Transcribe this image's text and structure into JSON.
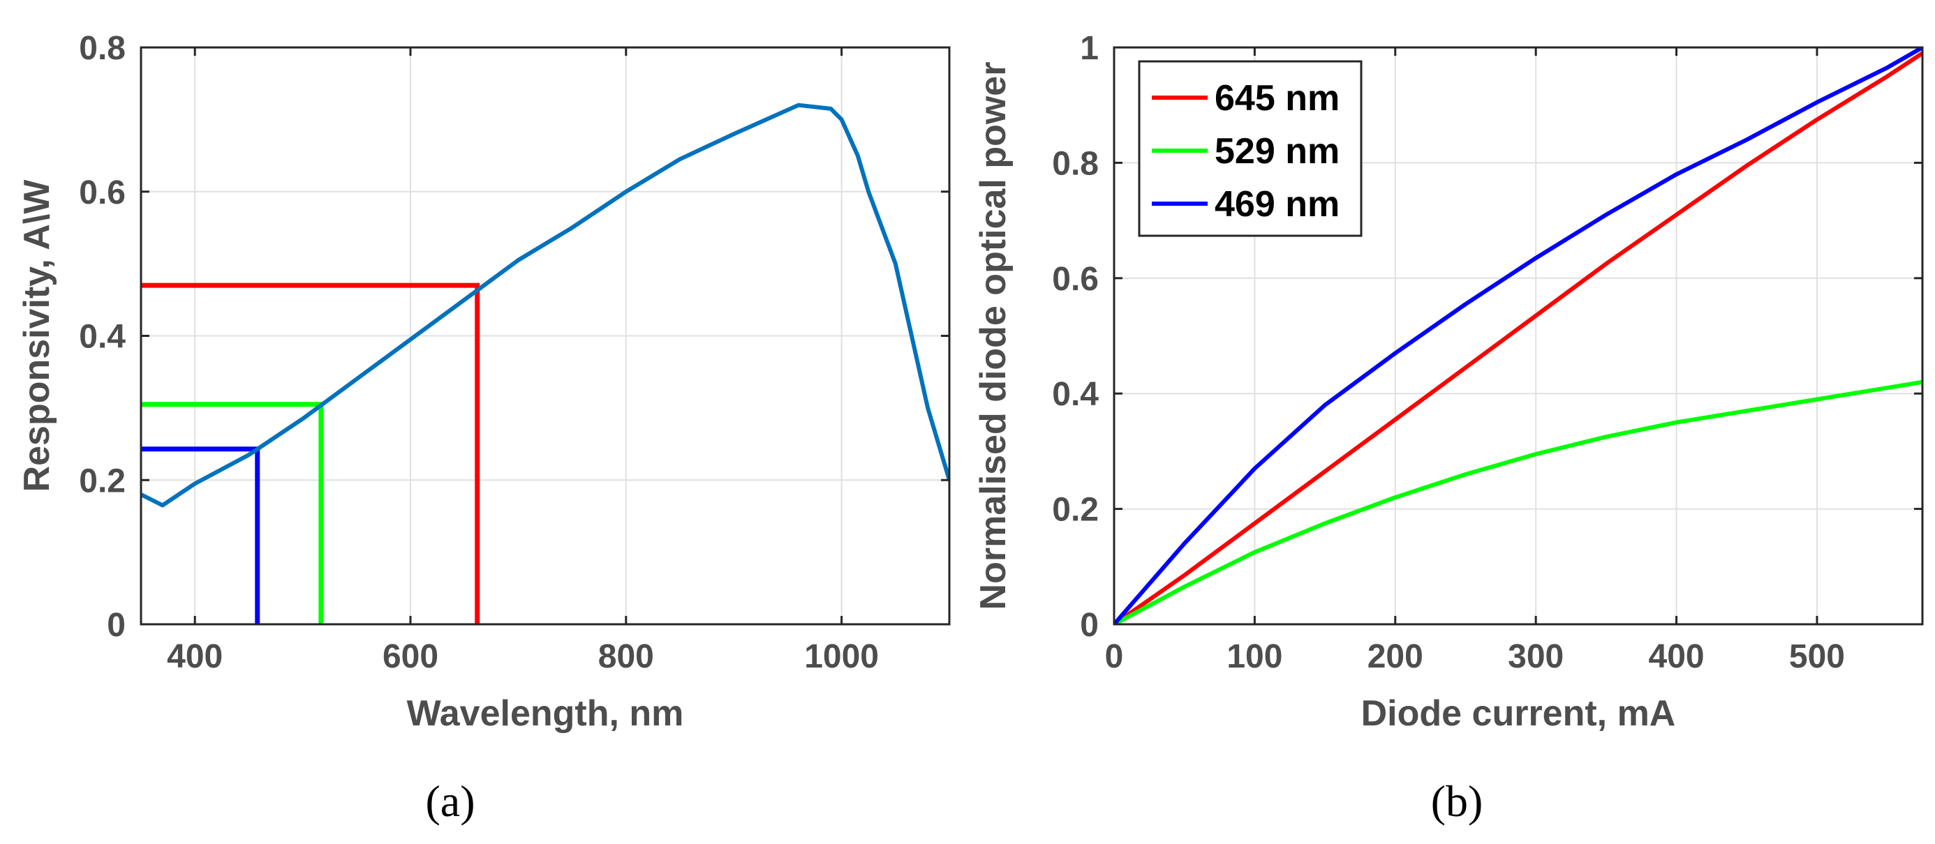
{
  "chart_data": [
    {
      "type": "line",
      "panel_label": "(a)",
      "title": "",
      "xlabel": "Wavelength, nm",
      "ylabel": "Responsivity, A\\W",
      "xlim": [
        350,
        1100
      ],
      "ylim": [
        0,
        0.8
      ],
      "xticks": [
        400,
        600,
        800,
        1000
      ],
      "yticks": [
        0,
        0.2,
        0.4,
        0.6,
        0.8
      ],
      "xtick_labels": [
        "400",
        "600",
        "800",
        "1000"
      ],
      "ytick_labels": [
        "0",
        "0.2",
        "0.4",
        "0.6",
        "0.8"
      ],
      "grid": true,
      "series": [
        {
          "name": "Responsivity",
          "color": "#0072BD",
          "x": [
            350,
            370,
            400,
            450,
            500,
            550,
            600,
            650,
            700,
            750,
            800,
            850,
            900,
            960,
            990,
            1000,
            1015,
            1025,
            1050,
            1080,
            1100
          ],
          "y": [
            0.18,
            0.165,
            0.195,
            0.235,
            0.285,
            0.34,
            0.395,
            0.45,
            0.505,
            0.55,
            0.6,
            0.645,
            0.68,
            0.72,
            0.715,
            0.7,
            0.65,
            0.6,
            0.5,
            0.3,
            0.2
          ]
        }
      ],
      "markers": [
        {
          "name": "645 nm",
          "color": "#FF0000",
          "x": 662,
          "y": 0.47
        },
        {
          "name": "529 nm",
          "color": "#00FF00",
          "x": 517,
          "y": 0.305
        },
        {
          "name": "469 nm",
          "color": "#0000FF",
          "x": 458,
          "y": 0.243
        }
      ]
    },
    {
      "type": "line",
      "panel_label": "(b)",
      "title": "",
      "xlabel": "Diode current, mA",
      "ylabel": "Normalised diode optical power",
      "xlim": [
        0,
        575
      ],
      "ylim": [
        0,
        1
      ],
      "xticks": [
        0,
        100,
        200,
        300,
        400,
        500
      ],
      "yticks": [
        0,
        0.2,
        0.4,
        0.6,
        0.8,
        1
      ],
      "xtick_labels": [
        "0",
        "100",
        "200",
        "300",
        "400",
        "500"
      ],
      "ytick_labels": [
        "0",
        "0.2",
        "0.4",
        "0.6",
        "0.8",
        "1"
      ],
      "grid": true,
      "legend_position": "top-left",
      "series": [
        {
          "name": "645 nm",
          "color": "#FF0000",
          "x": [
            0,
            50,
            100,
            150,
            200,
            250,
            300,
            350,
            400,
            450,
            500,
            550,
            575
          ],
          "y": [
            0,
            0.085,
            0.175,
            0.265,
            0.355,
            0.445,
            0.535,
            0.625,
            0.71,
            0.795,
            0.875,
            0.95,
            0.99
          ]
        },
        {
          "name": "529 nm",
          "color": "#00FF00",
          "x": [
            0,
            50,
            100,
            150,
            200,
            250,
            300,
            350,
            400,
            450,
            500,
            575
          ],
          "y": [
            0,
            0.065,
            0.125,
            0.175,
            0.22,
            0.26,
            0.295,
            0.325,
            0.35,
            0.37,
            0.39,
            0.42
          ]
        },
        {
          "name": "469 nm",
          "color": "#0000FF",
          "x": [
            0,
            50,
            100,
            150,
            200,
            250,
            300,
            350,
            400,
            450,
            500,
            550,
            575
          ],
          "y": [
            0,
            0.14,
            0.27,
            0.38,
            0.47,
            0.555,
            0.635,
            0.71,
            0.78,
            0.84,
            0.905,
            0.965,
            1.0
          ]
        }
      ]
    }
  ]
}
